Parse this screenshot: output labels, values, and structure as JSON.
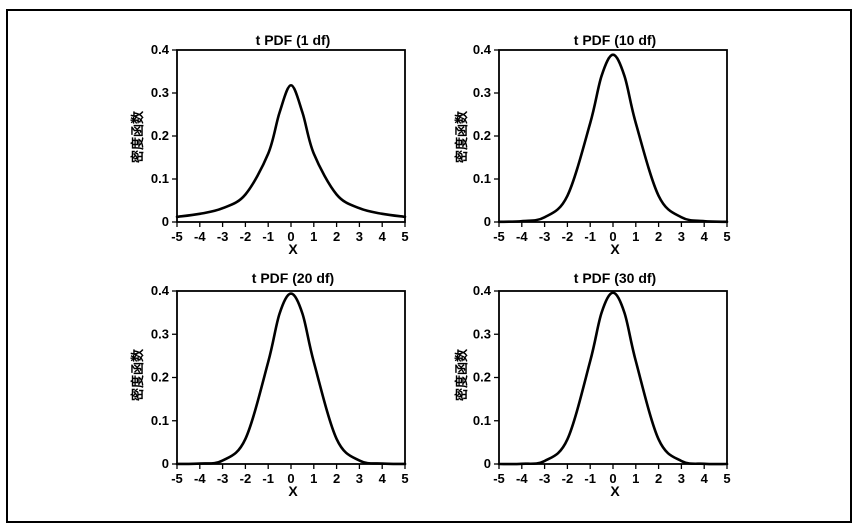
{
  "chart_data": [
    {
      "type": "line",
      "title": "t PDF (1 df)",
      "xlabel": "X",
      "ylabel": "密度函数",
      "xlim": [
        -5,
        5
      ],
      "ylim": [
        0,
        0.4
      ],
      "x_ticks": [
        "-5",
        "-4",
        "-3",
        "-2",
        "-1",
        "0",
        "1",
        "2",
        "3",
        "4",
        "5"
      ],
      "y_ticks": [
        "0",
        "0.1",
        "0.2",
        "0.3",
        "0.4"
      ],
      "series": [
        {
          "x": [
            -5,
            -4,
            -3,
            -2,
            -1,
            -0.5,
            0,
            0.5,
            1,
            2,
            3,
            4,
            5
          ],
          "values": [
            0.012,
            0.019,
            0.032,
            0.064,
            0.159,
            0.255,
            0.318,
            0.255,
            0.159,
            0.064,
            0.032,
            0.019,
            0.012
          ]
        }
      ]
    },
    {
      "type": "line",
      "title": "t PDF (10 df)",
      "xlabel": "X",
      "ylabel": "密度函数",
      "xlim": [
        -5,
        5
      ],
      "ylim": [
        0,
        0.4
      ],
      "x_ticks": [
        "-5",
        "-4",
        "-3",
        "-2",
        "-1",
        "0",
        "1",
        "2",
        "3",
        "4",
        "5"
      ],
      "y_ticks": [
        "0",
        "0.1",
        "0.2",
        "0.3",
        "0.4"
      ],
      "series": [
        {
          "x": [
            -5,
            -4,
            -3,
            -2,
            -1,
            -0.5,
            0,
            0.5,
            1,
            2,
            3,
            4,
            5
          ],
          "values": [
            0.0004,
            0.002,
            0.011,
            0.061,
            0.23,
            0.34,
            0.389,
            0.34,
            0.23,
            0.061,
            0.011,
            0.002,
            0.0004
          ]
        }
      ]
    },
    {
      "type": "line",
      "title": "t PDF (20 df)",
      "xlabel": "X",
      "ylabel": "密度函数",
      "xlim": [
        -5,
        5
      ],
      "ylim": [
        0,
        0.4
      ],
      "x_ticks": [
        "-5",
        "-4",
        "-3",
        "-2",
        "-1",
        "0",
        "1",
        "2",
        "3",
        "4",
        "5"
      ],
      "y_ticks": [
        "0",
        "0.1",
        "0.2",
        "0.3",
        "0.4"
      ],
      "series": [
        {
          "x": [
            -5,
            -4,
            -3,
            -2,
            -1,
            -0.5,
            0,
            0.5,
            1,
            2,
            3,
            4,
            5
          ],
          "values": [
            0.0001,
            0.001,
            0.008,
            0.058,
            0.236,
            0.348,
            0.394,
            0.348,
            0.236,
            0.058,
            0.008,
            0.001,
            0.0001
          ]
        }
      ]
    },
    {
      "type": "line",
      "title": "t PDF (30 df)",
      "xlabel": "X",
      "ylabel": "密度函数",
      "xlim": [
        -5,
        5
      ],
      "ylim": [
        0,
        0.4
      ],
      "x_ticks": [
        "-5",
        "-4",
        "-3",
        "-2",
        "-1",
        "0",
        "1",
        "2",
        "3",
        "4",
        "5"
      ],
      "y_ticks": [
        "0",
        "0.1",
        "0.2",
        "0.3",
        "0.4"
      ],
      "series": [
        {
          "x": [
            -5,
            -4,
            -3,
            -2,
            -1,
            -0.5,
            0,
            0.5,
            1,
            2,
            3,
            4,
            5
          ],
          "values": [
            3e-05,
            0.0005,
            0.007,
            0.057,
            0.238,
            0.35,
            0.396,
            0.35,
            0.238,
            0.057,
            0.007,
            0.0005,
            3e-05
          ]
        }
      ]
    }
  ]
}
